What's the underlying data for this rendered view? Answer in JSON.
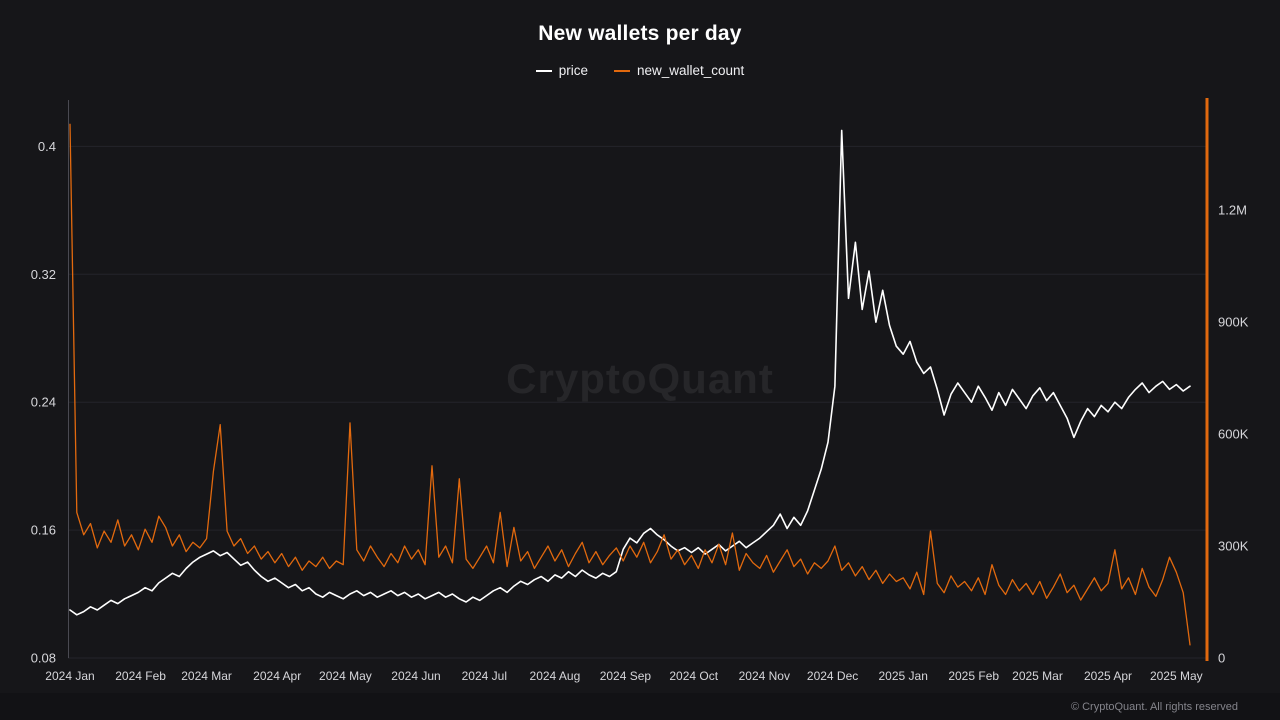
{
  "title": "New wallets per day",
  "watermark": "CryptoQuant",
  "footer": {
    "text": "© CryptoQuant. All rights reserved"
  },
  "legend": {
    "items": [
      {
        "label": "price",
        "color": "#ffffff"
      },
      {
        "label": "new_wallet_count",
        "color": "#e2690e"
      }
    ]
  },
  "colors": {
    "background": "#161619",
    "accent_orange": "#e2690e",
    "price_line": "#ffffff",
    "grid": "#24242a",
    "spine": "#4a4a52",
    "axis_text": "#d6d6da",
    "footer_text": "#84848b",
    "watermark_text": "rgba(255,255,255,0.07)"
  },
  "chart_data": {
    "type": "line",
    "title": "New wallets per day",
    "xlabel": "",
    "ylabel_left": "price",
    "ylabel_right": "new_wallet_count",
    "legend_position": "top-center",
    "grid": "horizontal-only",
    "x_start_label": "2024 Jan",
    "x_step_days": 3,
    "x_total_days": 492,
    "x_ticks": [
      {
        "day": 0,
        "label": "2024 Jan"
      },
      {
        "day": 31,
        "label": "2024 Feb"
      },
      {
        "day": 60,
        "label": "2024 Mar"
      },
      {
        "day": 91,
        "label": "2024 Apr"
      },
      {
        "day": 121,
        "label": "2024 May"
      },
      {
        "day": 152,
        "label": "2024 Jun"
      },
      {
        "day": 182,
        "label": "2024 Jul"
      },
      {
        "day": 213,
        "label": "2024 Aug"
      },
      {
        "day": 244,
        "label": "2024 Sep"
      },
      {
        "day": 274,
        "label": "2024 Oct"
      },
      {
        "day": 305,
        "label": "2024 Nov"
      },
      {
        "day": 335,
        "label": "2024 Dec"
      },
      {
        "day": 366,
        "label": "2025 Jan"
      },
      {
        "day": 397,
        "label": "2025 Feb"
      },
      {
        "day": 425,
        "label": "2025 Mar"
      },
      {
        "day": 456,
        "label": "2025 Apr"
      },
      {
        "day": 486,
        "label": "2025 May"
      }
    ],
    "left_axis": {
      "label": "price",
      "min": 0.08,
      "max": 0.429,
      "ticks": [
        {
          "value": 0.4,
          "label": "0.4"
        },
        {
          "value": 0.32,
          "label": "0.32"
        },
        {
          "value": 0.24,
          "label": "0.24"
        },
        {
          "value": 0.16,
          "label": "0.16"
        },
        {
          "value": 0.08,
          "label": "0.08"
        }
      ]
    },
    "right_axis": {
      "label": "new_wallet_count",
      "unit": "thousands",
      "min": 0,
      "max": 1495,
      "ticks": [
        {
          "value": 1200,
          "label": "1.2M"
        },
        {
          "value": 900,
          "label": "900K"
        },
        {
          "value": 600,
          "label": "600K"
        },
        {
          "value": 300,
          "label": "300K"
        },
        {
          "value": 0,
          "label": "0"
        }
      ]
    },
    "series": [
      {
        "name": "price",
        "axis": "left",
        "color": "#ffffff",
        "width": 1.6,
        "values": [
          0.11,
          0.107,
          0.109,
          0.112,
          0.11,
          0.113,
          0.116,
          0.114,
          0.117,
          0.119,
          0.121,
          0.124,
          0.122,
          0.127,
          0.13,
          0.133,
          0.131,
          0.136,
          0.14,
          0.143,
          0.145,
          0.147,
          0.144,
          0.146,
          0.142,
          0.138,
          0.14,
          0.135,
          0.131,
          0.128,
          0.13,
          0.127,
          0.124,
          0.126,
          0.122,
          0.124,
          0.12,
          0.118,
          0.121,
          0.119,
          0.117,
          0.12,
          0.122,
          0.119,
          0.121,
          0.118,
          0.12,
          0.122,
          0.119,
          0.121,
          0.118,
          0.12,
          0.117,
          0.119,
          0.121,
          0.118,
          0.12,
          0.117,
          0.115,
          0.118,
          0.116,
          0.119,
          0.122,
          0.124,
          0.121,
          0.125,
          0.128,
          0.126,
          0.129,
          0.131,
          0.128,
          0.132,
          0.13,
          0.134,
          0.131,
          0.135,
          0.132,
          0.13,
          0.133,
          0.131,
          0.134,
          0.148,
          0.155,
          0.152,
          0.158,
          0.161,
          0.157,
          0.154,
          0.15,
          0.147,
          0.149,
          0.146,
          0.149,
          0.145,
          0.148,
          0.151,
          0.147,
          0.15,
          0.153,
          0.149,
          0.152,
          0.155,
          0.159,
          0.163,
          0.17,
          0.161,
          0.168,
          0.163,
          0.172,
          0.185,
          0.198,
          0.215,
          0.25,
          0.41,
          0.305,
          0.34,
          0.298,
          0.322,
          0.29,
          0.31,
          0.288,
          0.275,
          0.27,
          0.278,
          0.265,
          0.258,
          0.262,
          0.248,
          0.232,
          0.245,
          0.252,
          0.246,
          0.24,
          0.25,
          0.243,
          0.235,
          0.246,
          0.238,
          0.248,
          0.242,
          0.236,
          0.244,
          0.249,
          0.241,
          0.246,
          0.238,
          0.23,
          0.218,
          0.228,
          0.236,
          0.231,
          0.238,
          0.234,
          0.24,
          0.236,
          0.243,
          0.248,
          0.252,
          0.246,
          0.25,
          0.253,
          0.248,
          0.251,
          0.247,
          0.25
        ]
      },
      {
        "name": "new_wallet_count",
        "axis": "right",
        "color": "#e2690e",
        "width": 1.3,
        "values": [
          1430,
          390,
          330,
          360,
          295,
          340,
          310,
          370,
          300,
          330,
          290,
          345,
          310,
          380,
          350,
          300,
          330,
          285,
          310,
          295,
          320,
          500,
          625,
          340,
          300,
          320,
          280,
          300,
          265,
          285,
          255,
          280,
          245,
          270,
          235,
          260,
          245,
          270,
          240,
          260,
          250,
          630,
          290,
          260,
          300,
          270,
          245,
          280,
          255,
          300,
          265,
          290,
          250,
          515,
          270,
          300,
          255,
          480,
          265,
          240,
          270,
          300,
          255,
          390,
          245,
          350,
          260,
          285,
          240,
          270,
          300,
          260,
          290,
          245,
          280,
          310,
          255,
          285,
          250,
          275,
          295,
          260,
          300,
          270,
          310,
          255,
          285,
          330,
          265,
          290,
          250,
          275,
          240,
          290,
          255,
          305,
          250,
          335,
          235,
          280,
          255,
          240,
          275,
          230,
          260,
          290,
          245,
          265,
          225,
          255,
          240,
          260,
          300,
          235,
          255,
          220,
          245,
          210,
          235,
          200,
          225,
          205,
          215,
          185,
          230,
          170,
          340,
          200,
          175,
          220,
          190,
          205,
          180,
          215,
          170,
          250,
          195,
          170,
          210,
          180,
          200,
          170,
          205,
          160,
          190,
          225,
          175,
          195,
          155,
          185,
          215,
          180,
          200,
          290,
          185,
          215,
          170,
          240,
          190,
          165,
          210,
          270,
          230,
          175,
          35
        ]
      }
    ]
  }
}
